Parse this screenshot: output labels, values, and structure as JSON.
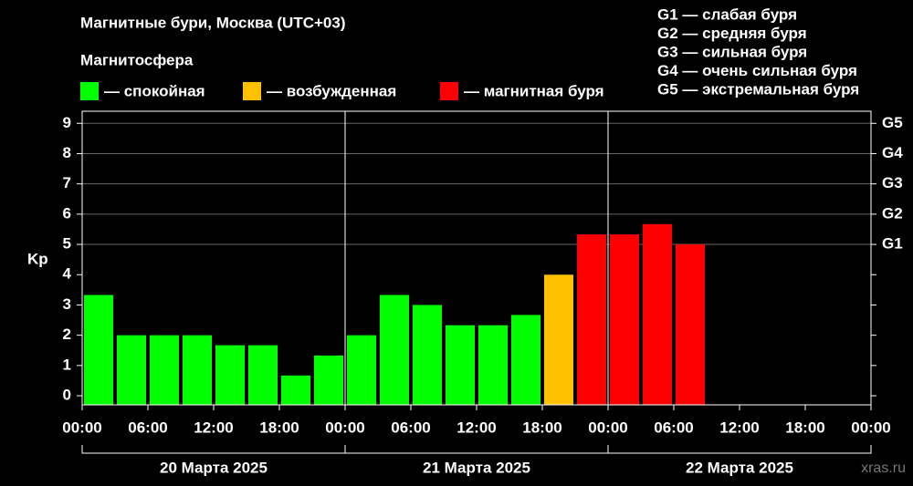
{
  "chart_data": {
    "type": "bar",
    "title": "Магнитные бури, Москва (UTC+03)",
    "legend_title": "Магнитосфера",
    "series": [
      {
        "name": "— спокойная",
        "color": "#00ff00"
      },
      {
        "name": "— возбужденная",
        "color": "#ffc000"
      },
      {
        "name": "— магнитная буря",
        "color": "#ff0000"
      }
    ],
    "scale_notes": [
      "G1 — слабая буря",
      "G2 — средняя буря",
      "G3 — сильная буря",
      "G4 — очень сильная буря",
      "G5 — экстремальная буря"
    ],
    "y_label": "Kp",
    "x": [
      0,
      3,
      6,
      9,
      12,
      15,
      18,
      21,
      24,
      27,
      30,
      33,
      36,
      39,
      42,
      45,
      48,
      51,
      54
    ],
    "values": [
      3.33,
      2,
      2,
      2,
      1.67,
      1.67,
      0.67,
      1.33,
      2,
      3.33,
      3,
      2.33,
      2.33,
      2.67,
      4,
      5.33,
      5.33,
      5.67,
      5
    ],
    "colors": [
      "#00ff00",
      "#00ff00",
      "#00ff00",
      "#00ff00",
      "#00ff00",
      "#00ff00",
      "#00ff00",
      "#00ff00",
      "#00ff00",
      "#00ff00",
      "#00ff00",
      "#00ff00",
      "#00ff00",
      "#00ff00",
      "#ffc000",
      "#ff0000",
      "#ff0000",
      "#ff0000",
      "#ff0000"
    ],
    "xlim": [
      0,
      72
    ],
    "xticks": [
      {
        "value": 0,
        "label": "00:00"
      },
      {
        "value": 6,
        "label": "06:00"
      },
      {
        "value": 12,
        "label": "12:00"
      },
      {
        "value": 18,
        "label": "18:00"
      },
      {
        "value": 24,
        "label": "00:00"
      },
      {
        "value": 30,
        "label": "06:00"
      },
      {
        "value": 36,
        "label": "12:00"
      },
      {
        "value": 42,
        "label": "18:00"
      },
      {
        "value": 48,
        "label": "00:00"
      },
      {
        "value": 54,
        "label": "06:00"
      },
      {
        "value": 60,
        "label": "12:00"
      },
      {
        "value": 66,
        "label": "18:00"
      },
      {
        "value": 72,
        "label": "00:00"
      }
    ],
    "day_boundaries": [
      24,
      48
    ],
    "days": [
      "20 Марта 2025",
      "21 Марта 2025",
      "22 Марта 2025"
    ],
    "ylim": [
      -0.3,
      9.4
    ],
    "yticks": [
      0,
      1,
      2,
      3,
      4,
      5,
      6,
      7,
      8,
      9
    ],
    "y2lim": [
      -0.3,
      9.4
    ],
    "y2ticks": [
      {
        "value": 5,
        "label": "G1"
      },
      {
        "value": 6,
        "label": "G2"
      },
      {
        "value": 7,
        "label": "G3"
      },
      {
        "value": 8,
        "label": "G4"
      },
      {
        "value": 9,
        "label": "G5"
      }
    ],
    "watermark": "xras.ru"
  }
}
